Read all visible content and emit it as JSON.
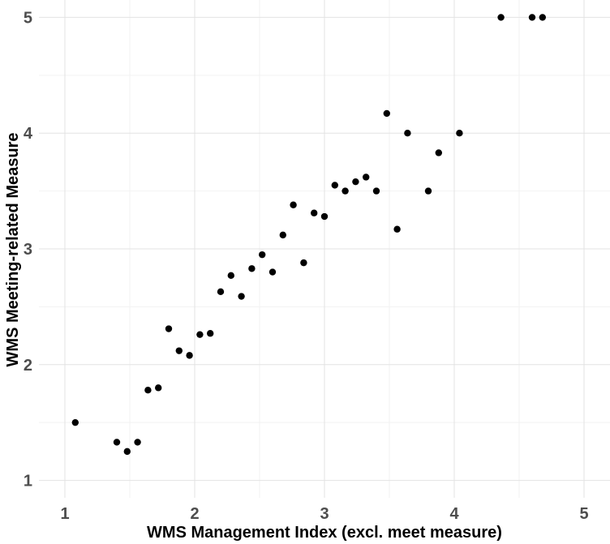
{
  "chart_data": {
    "type": "scatter",
    "title": "",
    "xlabel": "WMS Management Index (excl. meet measure)",
    "ylabel": "WMS Meeting-related Measure",
    "xlim": [
      0.8,
      5.2
    ],
    "ylim": [
      0.85,
      5.15
    ],
    "x_ticks": [
      "1",
      "2",
      "3",
      "4",
      "5"
    ],
    "y_ticks": [
      "1",
      "2",
      "3",
      "4",
      "5"
    ],
    "grid": true,
    "point_color": "#000000",
    "grid_major_color": "#e3e3e3",
    "grid_minor_color": "#f2f2f2",
    "points": [
      {
        "x": 1.08,
        "y": 1.5
      },
      {
        "x": 1.4,
        "y": 1.33
      },
      {
        "x": 1.48,
        "y": 1.25
      },
      {
        "x": 1.56,
        "y": 1.33
      },
      {
        "x": 1.64,
        "y": 1.78
      },
      {
        "x": 1.72,
        "y": 1.8
      },
      {
        "x": 1.8,
        "y": 2.31
      },
      {
        "x": 1.88,
        "y": 2.12
      },
      {
        "x": 1.96,
        "y": 2.08
      },
      {
        "x": 2.04,
        "y": 2.26
      },
      {
        "x": 2.12,
        "y": 2.27
      },
      {
        "x": 2.2,
        "y": 2.63
      },
      {
        "x": 2.28,
        "y": 2.77
      },
      {
        "x": 2.36,
        "y": 2.59
      },
      {
        "x": 2.44,
        "y": 2.83
      },
      {
        "x": 2.52,
        "y": 2.95
      },
      {
        "x": 2.6,
        "y": 2.8
      },
      {
        "x": 2.68,
        "y": 3.12
      },
      {
        "x": 2.76,
        "y": 3.38
      },
      {
        "x": 2.84,
        "y": 2.88
      },
      {
        "x": 2.92,
        "y": 3.31
      },
      {
        "x": 3.0,
        "y": 3.28
      },
      {
        "x": 3.08,
        "y": 3.55
      },
      {
        "x": 3.16,
        "y": 3.5
      },
      {
        "x": 3.24,
        "y": 3.58
      },
      {
        "x": 3.32,
        "y": 3.62
      },
      {
        "x": 3.4,
        "y": 3.5
      },
      {
        "x": 3.48,
        "y": 4.17
      },
      {
        "x": 3.56,
        "y": 3.17
      },
      {
        "x": 3.64,
        "y": 4.0
      },
      {
        "x": 3.8,
        "y": 3.5
      },
      {
        "x": 3.88,
        "y": 3.83
      },
      {
        "x": 4.04,
        "y": 4.0
      },
      {
        "x": 4.36,
        "y": 5.0
      },
      {
        "x": 4.6,
        "y": 5.0
      },
      {
        "x": 4.68,
        "y": 5.0
      }
    ]
  }
}
